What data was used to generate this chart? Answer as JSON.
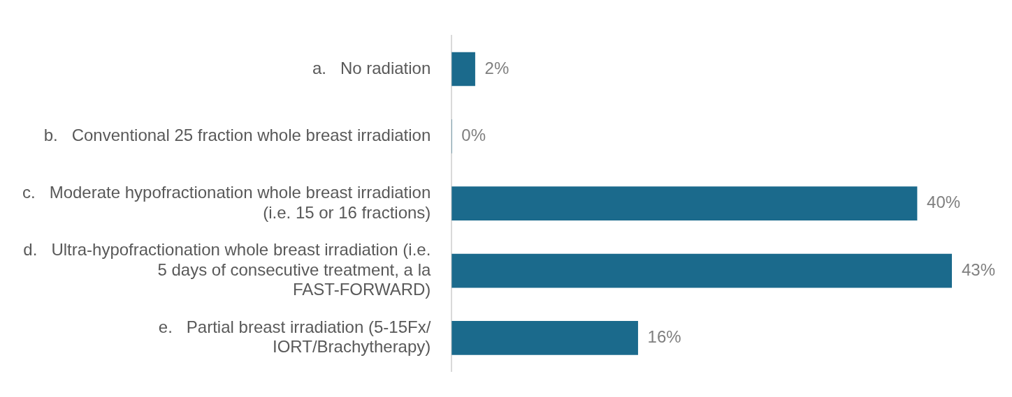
{
  "chart_data": {
    "type": "bar",
    "orientation": "horizontal",
    "categories": [
      "a.   No radiation",
      "b.   Conventional 25 fraction whole breast irradiation",
      "c.   Moderate hypofractionation whole breast irradiation (i.e. 15 or 16 fractions)",
      "d.   Ultra-hypofractionation whole breast irradiation (i.e. 5 days of consecutive treatment, a la FAST-FORWARD)",
      "e.   Partial breast irradiation (5-15Fx/ IORT/Brachytherapy)"
    ],
    "values": [
      2,
      0,
      40,
      43,
      16
    ],
    "value_labels": [
      "2%",
      "0%",
      "40%",
      "43%",
      "16%"
    ],
    "color": "#1b6a8c",
    "legend": false,
    "tick_labels": "y"
  }
}
